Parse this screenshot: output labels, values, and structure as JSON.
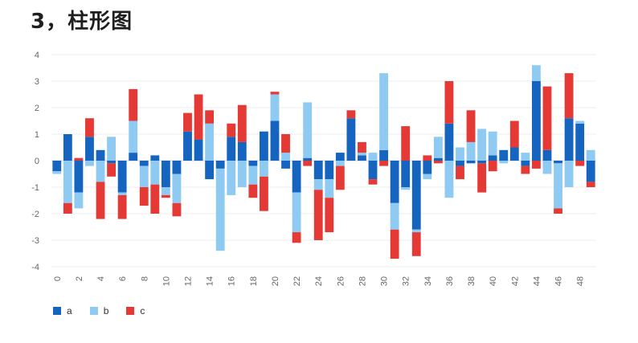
{
  "page": {
    "heading": "3，柱形图"
  },
  "chart_data": {
    "type": "bar",
    "stacked": true,
    "title": "",
    "xlabel": "",
    "ylabel": "",
    "ylim": [
      -4,
      4
    ],
    "yticks": [
      4,
      3,
      2,
      1,
      0,
      -1,
      -2,
      -3,
      -4
    ],
    "x": [
      0,
      1,
      2,
      3,
      4,
      5,
      6,
      7,
      8,
      9,
      10,
      11,
      12,
      13,
      14,
      15,
      16,
      17,
      18,
      19,
      20,
      21,
      22,
      23,
      24,
      25,
      26,
      27,
      28,
      29,
      30,
      31,
      32,
      33,
      34,
      35,
      36,
      37,
      38,
      39,
      40,
      41,
      42,
      43,
      44,
      45,
      46,
      47,
      48,
      49
    ],
    "xtick_labels": [
      "0",
      "2",
      "4",
      "6",
      "8",
      "10",
      "12",
      "14",
      "16",
      "18",
      "20",
      "22",
      "24",
      "26",
      "28",
      "30",
      "32",
      "34",
      "36",
      "38",
      "40",
      "42",
      "44",
      "46",
      "48"
    ],
    "grid": true,
    "legend_position": "bottom-left",
    "series": [
      {
        "name": "a",
        "color": "#1565c0",
        "values": [
          -0.4,
          1.0,
          -1.2,
          0.9,
          0.4,
          -0.1,
          -1.2,
          0.3,
          -0.2,
          0.2,
          -1.0,
          -0.5,
          1.1,
          0.8,
          -0.7,
          -0.3,
          0.9,
          0.7,
          -0.2,
          1.1,
          1.5,
          -0.3,
          -1.2,
          0.1,
          -0.7,
          -0.7,
          0.3,
          1.6,
          0.2,
          -0.7,
          0.4,
          -1.6,
          -1.0,
          -2.6,
          -0.5,
          0.1,
          1.4,
          -0.2,
          -0.1,
          -0.1,
          0.2,
          0.4,
          0.5,
          -0.2,
          3.0,
          0.4,
          -0.1,
          1.6,
          1.4,
          -0.8
        ]
      },
      {
        "name": "b",
        "color": "#8ecaf2",
        "values": [
          -0.1,
          -1.6,
          -0.6,
          -0.2,
          -0.8,
          0.9,
          -0.1,
          1.2,
          -0.8,
          -0.9,
          -0.3,
          -1.1,
          0.0,
          0.0,
          1.4,
          -3.1,
          -1.3,
          -1.0,
          -0.7,
          -0.6,
          1.0,
          0.3,
          -1.5,
          2.1,
          -0.4,
          -0.7,
          -0.2,
          0.0,
          0.1,
          0.3,
          2.9,
          -1.0,
          -0.1,
          -0.1,
          -0.2,
          0.8,
          -1.4,
          0.5,
          0.7,
          1.2,
          0.9,
          -0.1,
          0.0,
          0.3,
          0.6,
          -0.5,
          -1.7,
          -1.0,
          0.1,
          0.4
        ]
      },
      {
        "name": "c",
        "color": "#e53935",
        "values": [
          -0.0,
          -0.4,
          0.1,
          0.7,
          -1.4,
          -0.5,
          -0.9,
          1.2,
          -0.7,
          -1.1,
          -0.1,
          -0.5,
          0.7,
          1.7,
          0.5,
          0.0,
          0.5,
          1.4,
          -0.5,
          -1.3,
          0.1,
          0.7,
          -0.4,
          -0.2,
          -1.9,
          -1.3,
          -0.9,
          0.3,
          0.4,
          -0.2,
          -0.2,
          -1.1,
          1.3,
          -0.9,
          0.2,
          -0.1,
          1.6,
          -0.5,
          1.2,
          -1.1,
          -0.4,
          0.0,
          1.0,
          -0.3,
          -0.3,
          2.4,
          -0.2,
          1.7,
          -0.2,
          -0.2
        ]
      }
    ]
  }
}
